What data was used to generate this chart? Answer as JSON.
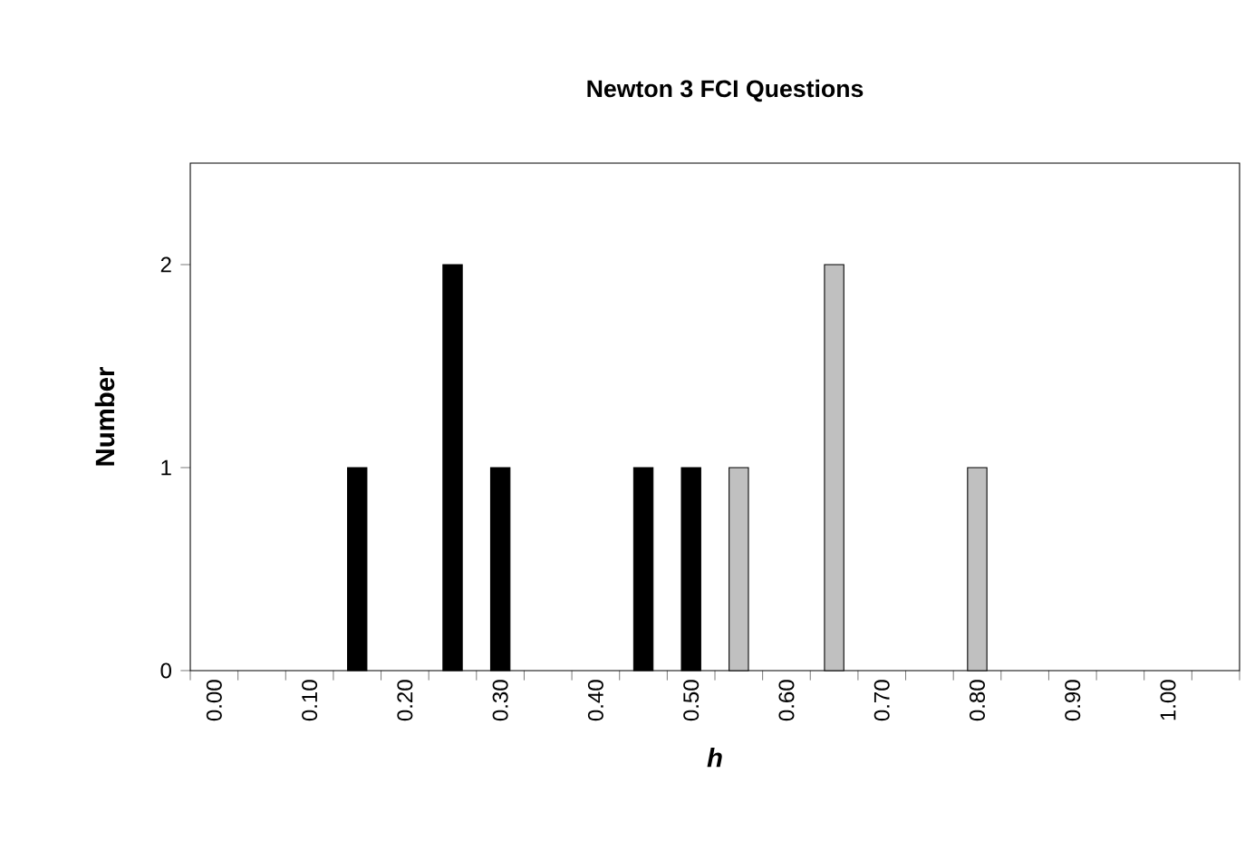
{
  "chart_data": {
    "type": "bar",
    "title": "Newton 3 FCI Questions",
    "xlabel": "h",
    "ylabel": "Number",
    "categories": [
      "0.00",
      null,
      "0.10",
      null,
      "0.20",
      null,
      "0.30",
      null,
      "0.40",
      null,
      "0.50",
      null,
      "0.60",
      null,
      "0.70",
      null,
      "0.80",
      null,
      "0.90",
      null,
      "1.00",
      null
    ],
    "series": [
      {
        "color": "#000000",
        "values": [
          null,
          null,
          null,
          1,
          null,
          2,
          1,
          null,
          null,
          1,
          1,
          null,
          null,
          null,
          null,
          null,
          null,
          null,
          null,
          null,
          null,
          null
        ]
      },
      {
        "color": "#c0c0c0",
        "values": [
          null,
          null,
          null,
          null,
          null,
          null,
          null,
          null,
          null,
          null,
          null,
          1,
          null,
          2,
          null,
          null,
          1,
          null,
          null,
          null,
          null,
          null
        ]
      }
    ],
    "ylim": [
      0,
      2.5
    ],
    "yticks": [
      0,
      1,
      2
    ],
    "grid": false
  }
}
